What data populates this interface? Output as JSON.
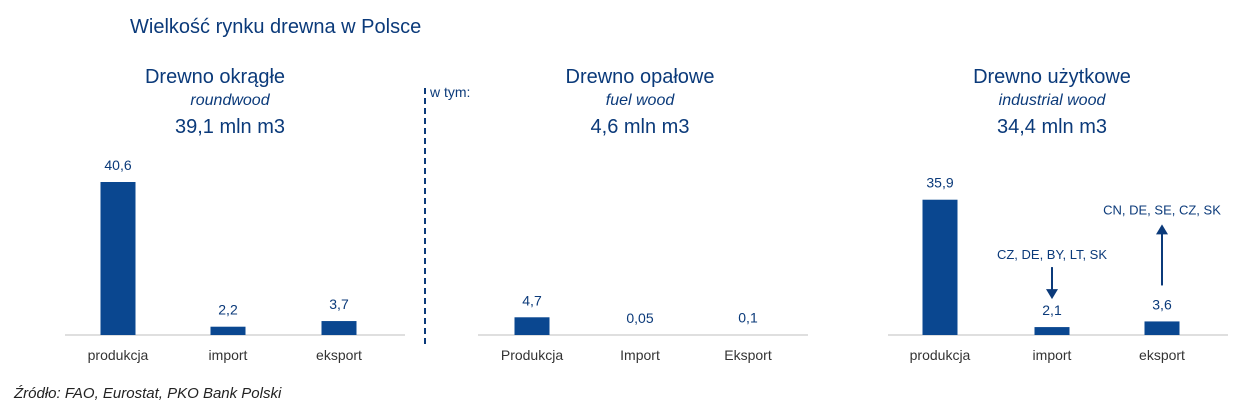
{
  "title": "Wielkość rynku drewna w Polsce",
  "in_which": "w tym:",
  "source": "Źródło: FAO, Eurostat, PKO Bank Polski",
  "colors": {
    "bar": "#0a4790",
    "text": "#0b3a7a"
  },
  "chart_data": [
    {
      "type": "bar",
      "title": "Drewno okrągłe",
      "subtitle": "roundwood",
      "total": "39,1 mln m3",
      "categories": [
        "produkcja",
        "import",
        "eksport"
      ],
      "values": [
        40.6,
        2.2,
        3.7
      ],
      "value_labels": [
        "40,6",
        "2,2",
        "3,7"
      ],
      "annotations": []
    },
    {
      "type": "bar",
      "title": "Drewno opałowe",
      "subtitle": "fuel wood",
      "total": "4,6 mln m3",
      "categories": [
        "Produkcja",
        "Import",
        "Eksport"
      ],
      "values": [
        4.7,
        0.05,
        0.1
      ],
      "value_labels": [
        "4,7",
        "0,05",
        "0,1"
      ],
      "annotations": []
    },
    {
      "type": "bar",
      "title": "Drewno użytkowe",
      "subtitle": "industrial wood",
      "total": "34,4 mln m3",
      "categories": [
        "produkcja",
        "import",
        "eksport"
      ],
      "values": [
        35.9,
        2.1,
        3.6
      ],
      "value_labels": [
        "35,9",
        "2,1",
        "3,6"
      ],
      "annotations": [
        {
          "category": "import",
          "direction": "in",
          "text": "CZ, DE, BY, LT, SK"
        },
        {
          "category": "eksport",
          "direction": "out",
          "text": "CN, DE, SE, CZ, SK"
        }
      ]
    }
  ]
}
